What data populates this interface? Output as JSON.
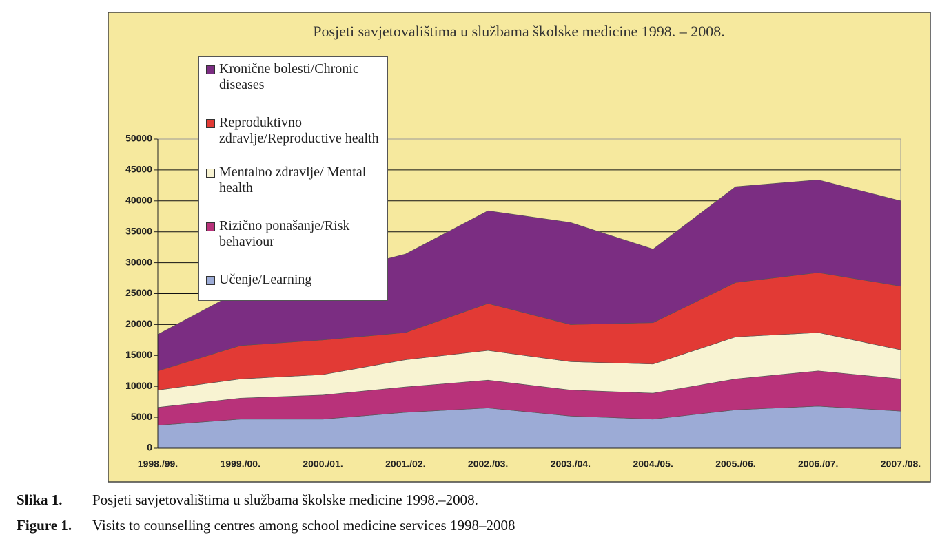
{
  "chart_data": {
    "type": "stacked_area",
    "title": "Posjeti savjetovalištima u službama školske medicine 1998. – 2008.",
    "categories": [
      "1998./99.",
      "1999./00.",
      "2000./01.",
      "2001./02.",
      "2002./03.",
      "2003./04.",
      "2004./05.",
      "2005./06.",
      "2006./07.",
      "2007./08."
    ],
    "series": [
      {
        "name": "Kronične bolesti/Chronic diseases",
        "color": "#7b2d82",
        "values": [
          5900,
          8900,
          10500,
          12700,
          15000,
          16500,
          11900,
          15500,
          15000,
          13800
        ]
      },
      {
        "name": "Reproduktivno zdravlje/Reproductive health",
        "color": "#e23a35",
        "values": [
          3100,
          5400,
          5600,
          4400,
          7600,
          6000,
          6700,
          8800,
          9700,
          10300
        ]
      },
      {
        "name": "Mentalno zdravlje/ Mental health",
        "color": "#f8f3d2",
        "values": [
          2800,
          3100,
          3300,
          4400,
          4800,
          4600,
          4700,
          6800,
          6200,
          4700
        ]
      },
      {
        "name": "Rizično ponašanje/Risk behaviour",
        "color": "#b8327a",
        "values": [
          2900,
          3400,
          3900,
          4100,
          4500,
          4200,
          4200,
          5000,
          5700,
          5200
        ]
      },
      {
        "name": "Učenje/Learning",
        "color": "#9cabd6",
        "values": [
          3700,
          4700,
          4700,
          5800,
          6500,
          5200,
          4700,
          6200,
          6800,
          6000
        ]
      }
    ],
    "ylim": [
      0,
      50000
    ],
    "yticks": [
      0,
      5000,
      10000,
      15000,
      20000,
      25000,
      30000,
      35000,
      40000,
      45000,
      50000
    ],
    "grid": true,
    "stacking": "last series at bottom"
  },
  "caption": [
    {
      "label": "Slika 1.",
      "text": "Posjeti savjetovalištima u službama školske medicine 1998.–2008."
    },
    {
      "label": "Figure 1.",
      "text": "Visits to counselling centres among school medicine services 1998–2008"
    }
  ]
}
